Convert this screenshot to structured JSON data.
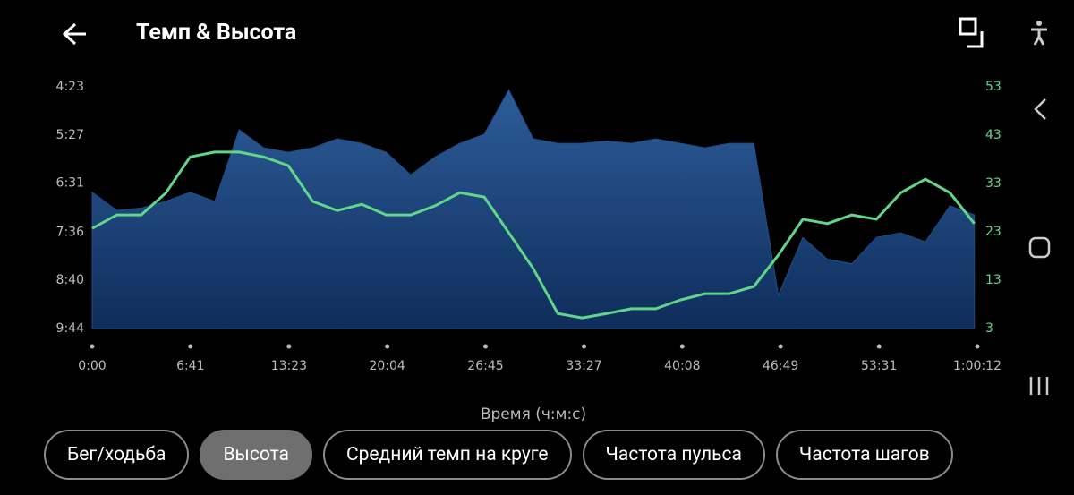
{
  "header": {
    "title": "Темп & Высота"
  },
  "chart_data": {
    "type": "area",
    "x_label": "Время (ч:м:с)",
    "x": [
      0,
      100,
      200,
      300,
      400,
      500,
      600,
      700,
      800,
      900,
      1000,
      1100,
      1200,
      1300,
      1400,
      1500,
      1600,
      1700,
      1800,
      1900,
      2000,
      2100,
      2200,
      2300,
      2400,
      2500,
      2600,
      2700,
      2800,
      2900,
      3000,
      3100,
      3200,
      3300,
      3400,
      3500,
      3600
    ],
    "xlim": [
      0,
      3612
    ],
    "xticks": [
      {
        "value": 0,
        "label": "0:00"
      },
      {
        "value": 401,
        "label": "6:41"
      },
      {
        "value": 803,
        "label": "13:23"
      },
      {
        "value": 1204,
        "label": "20:04"
      },
      {
        "value": 1605,
        "label": "26:45"
      },
      {
        "value": 2007,
        "label": "33:27"
      },
      {
        "value": 2408,
        "label": "40:08"
      },
      {
        "value": 2809,
        "label": "46:49"
      },
      {
        "value": 3211,
        "label": "53:31"
      },
      {
        "value": 3612,
        "label": "1:00:12"
      }
    ],
    "ylim": [
      584,
      263
    ],
    "yticks": [
      {
        "value": 263,
        "label": "4:23"
      },
      {
        "value": 327,
        "label": "5:27"
      },
      {
        "value": 391,
        "label": "6:31"
      },
      {
        "value": 456,
        "label": "7:36"
      },
      {
        "value": 520,
        "label": "8:40"
      },
      {
        "value": 584,
        "label": "9:44"
      }
    ],
    "y2lim": [
      3,
      53
    ],
    "y2ticks": [
      3,
      13,
      23,
      33,
      43,
      53
    ],
    "series": [
      {
        "type": "area",
        "color": "#1f4d85",
        "values": [
          403,
          427,
          424,
          415,
          403,
          415,
          320,
          344,
          350,
          344,
          332,
          338,
          350,
          380,
          356,
          338,
          326,
          267,
          332,
          338,
          338,
          335,
          338,
          332,
          338,
          344,
          338,
          338,
          540,
          463,
          492,
          498,
          463,
          457,
          469,
          421,
          433
        ]
      },
      {
        "type": "line",
        "axis": "y2",
        "color": "#5fd68a",
        "values": [
          23.7,
          26.5,
          26.5,
          31,
          38.5,
          39.5,
          39.5,
          38.5,
          36.7,
          29.3,
          27.4,
          28.7,
          26.5,
          26.5,
          28.4,
          31.1,
          30.2,
          22.8,
          15.4,
          6.1,
          5.2,
          6.1,
          7.1,
          7.1,
          8.9,
          10.2,
          10.2,
          11.7,
          18.2,
          25.6,
          24.7,
          26.5,
          25.6,
          31.1,
          33.9,
          31.1,
          24.7
        ]
      }
    ]
  },
  "tabs": {
    "items": [
      "Бег/ходьба",
      "Высота",
      "Средний темп на круге",
      "Частота пульса",
      "Частота шагов"
    ],
    "selected": 1
  }
}
